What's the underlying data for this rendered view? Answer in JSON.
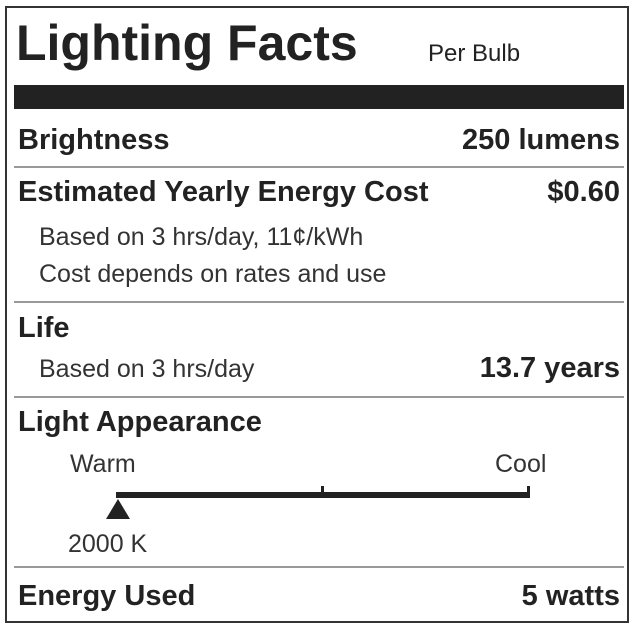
{
  "header": {
    "title": "Lighting Facts",
    "subtitle": "Per Bulb"
  },
  "brightness": {
    "label": "Brightness",
    "value": "250 lumens"
  },
  "cost": {
    "label": "Estimated Yearly Energy Cost",
    "value": "$0.60",
    "note1": "Based on 3 hrs/day, 11¢/kWh",
    "note2": "Cost depends on rates and use"
  },
  "life": {
    "label": "Life",
    "note": "Based on 3 hrs/day",
    "value": "13.7 years"
  },
  "appearance": {
    "label": "Light Appearance",
    "warm_label": "Warm",
    "cool_label": "Cool",
    "value_label": "2000 K",
    "kelvin": 2000,
    "position_fraction": 0.0
  },
  "energy": {
    "label": "Energy Used",
    "value": "5 watts"
  },
  "colors": {
    "ink": "#222222",
    "divider": "#999999"
  }
}
